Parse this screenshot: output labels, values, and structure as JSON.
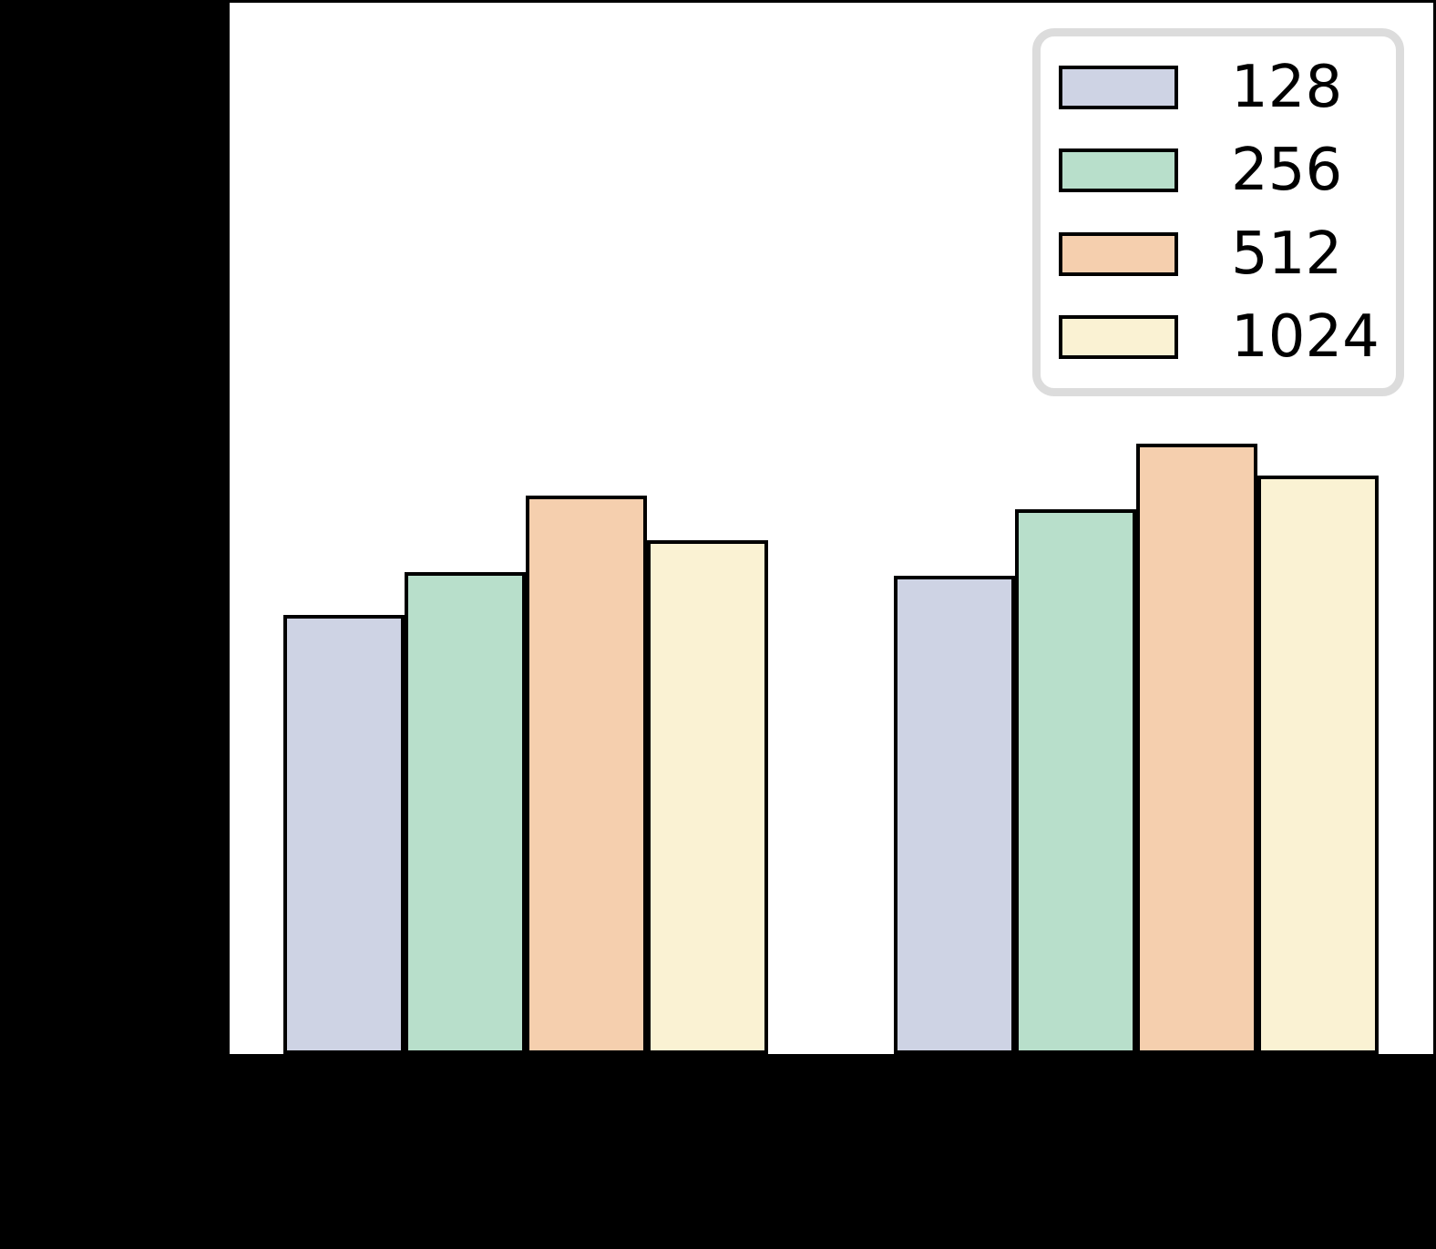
{
  "figure": {
    "background_color": "#000000",
    "plot_background_color": "#ffffff",
    "note": "Axis tick labels, axis titles and any figure title are drawn in black on a black background and are not visible in the screenshot."
  },
  "legend": {
    "position": "upper right",
    "border_color": "#dcdcdc",
    "background_color": "#ffffff"
  },
  "chart_data": {
    "type": "bar",
    "categories": [
      "",
      ""
    ],
    "categories_note": "two bar groups; x tick labels not visible (black on black)",
    "series": [
      {
        "name": "128",
        "color": "#ced3e4",
        "values_fraction_of_axis": [
          0.418,
          0.455
        ]
      },
      {
        "name": "256",
        "color": "#b8dfcb",
        "values_fraction_of_axis": [
          0.458,
          0.518
        ]
      },
      {
        "name": "512",
        "color": "#f5cfae",
        "values_fraction_of_axis": [
          0.531,
          0.581
        ]
      },
      {
        "name": "1024",
        "color": "#faf2d3",
        "values_fraction_of_axis": [
          0.489,
          0.55
        ]
      }
    ],
    "bar_edge_color": "#000000",
    "grid": false,
    "legend_entries": [
      "128",
      "256",
      "512",
      "1024"
    ],
    "ylim_note": "y-axis scale unreadable; values given as fraction of visible axis height",
    "title": "",
    "xlabel": "",
    "ylabel": ""
  }
}
